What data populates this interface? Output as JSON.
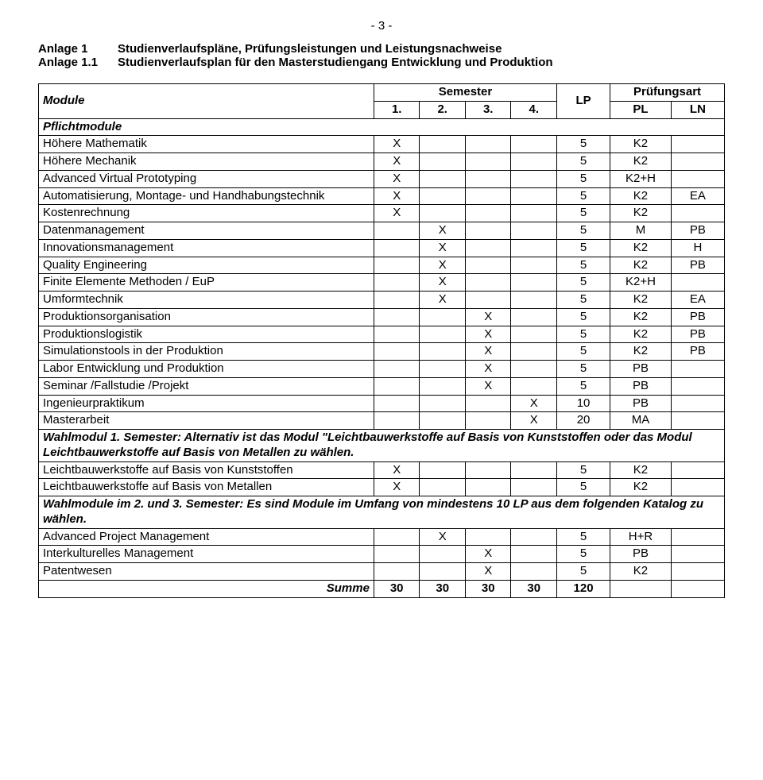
{
  "page_number": "- 3 -",
  "heading": {
    "rows": [
      {
        "key": "Anlage 1",
        "text": "Studienverlaufspläne, Prüfungsleistungen und Leistungsnachweise"
      },
      {
        "key": "Anlage 1.1",
        "text": "Studienverlaufsplan für den Masterstudiengang Entwicklung und Produktion"
      }
    ]
  },
  "table": {
    "header": {
      "module": "Module",
      "semester": "Semester",
      "lp": "LP",
      "pruefungsart": "Prüfungsart",
      "s1": "1.",
      "s2": "2.",
      "s3": "3.",
      "s4": "4.",
      "pl": "PL",
      "ln": "LN"
    },
    "section_pflicht": "Pflichtmodule",
    "rows_pflicht": [
      {
        "name": "Höhere Mathematik",
        "s1": "X",
        "s2": "",
        "s3": "",
        "s4": "",
        "lp": "5",
        "pl": "K2",
        "ln": ""
      },
      {
        "name": "Höhere Mechanik",
        "s1": "X",
        "s2": "",
        "s3": "",
        "s4": "",
        "lp": "5",
        "pl": "K2",
        "ln": ""
      },
      {
        "name": "Advanced Virtual Prototyping",
        "s1": "X",
        "s2": "",
        "s3": "",
        "s4": "",
        "lp": "5",
        "pl": "K2+H",
        "ln": ""
      },
      {
        "name": "Automatisierung, Montage- und Handhabungstechnik",
        "s1": "X",
        "s2": "",
        "s3": "",
        "s4": "",
        "lp": "5",
        "pl": "K2",
        "ln": "EA"
      },
      {
        "name": "Kostenrechnung",
        "s1": "X",
        "s2": "",
        "s3": "",
        "s4": "",
        "lp": "5",
        "pl": "K2",
        "ln": ""
      },
      {
        "name": "Datenmanagement",
        "s1": "",
        "s2": "X",
        "s3": "",
        "s4": "",
        "lp": "5",
        "pl": "M",
        "ln": "PB"
      },
      {
        "name": "Innovationsmanagement",
        "s1": "",
        "s2": "X",
        "s3": "",
        "s4": "",
        "lp": "5",
        "pl": "K2",
        "ln": "H"
      },
      {
        "name": "Quality Engineering",
        "s1": "",
        "s2": "X",
        "s3": "",
        "s4": "",
        "lp": "5",
        "pl": "K2",
        "ln": "PB"
      },
      {
        "name": "Finite Elemente Methoden / EuP",
        "s1": "",
        "s2": "X",
        "s3": "",
        "s4": "",
        "lp": "5",
        "pl": "K2+H",
        "ln": ""
      },
      {
        "name": "Umformtechnik",
        "s1": "",
        "s2": "X",
        "s3": "",
        "s4": "",
        "lp": "5",
        "pl": "K2",
        "ln": "EA"
      },
      {
        "name": "Produktionsorganisation",
        "s1": "",
        "s2": "",
        "s3": "X",
        "s4": "",
        "lp": "5",
        "pl": "K2",
        "ln": "PB"
      },
      {
        "name": "Produktionslogistik",
        "s1": "",
        "s2": "",
        "s3": "X",
        "s4": "",
        "lp": "5",
        "pl": "K2",
        "ln": "PB"
      },
      {
        "name": "Simulationstools in der Produktion",
        "s1": "",
        "s2": "",
        "s3": "X",
        "s4": "",
        "lp": "5",
        "pl": "K2",
        "ln": "PB"
      },
      {
        "name": "Labor Entwicklung und Produktion",
        "s1": "",
        "s2": "",
        "s3": "X",
        "s4": "",
        "lp": "5",
        "pl": "PB",
        "ln": ""
      },
      {
        "name": "Seminar /Fallstudie /Projekt",
        "s1": "",
        "s2": "",
        "s3": "X",
        "s4": "",
        "lp": "5",
        "pl": "PB",
        "ln": ""
      },
      {
        "name": "Ingenieurpraktikum",
        "s1": "",
        "s2": "",
        "s3": "",
        "s4": "X",
        "lp": "10",
        "pl": "PB",
        "ln": ""
      },
      {
        "name": "Masterarbeit",
        "s1": "",
        "s2": "",
        "s3": "",
        "s4": "X",
        "lp": "20",
        "pl": "MA",
        "ln": ""
      }
    ],
    "wahl1_label": "Wahlmodul 1. Semester: Alternativ ist das Modul \"Leichtbauwerkstoffe auf Basis von Kunststoffen oder das Modul Leichtbauwerkstoffe auf Basis von Metallen zu wählen.",
    "rows_wahl1": [
      {
        "name": "Leichtbauwerkstoffe auf Basis von Kunststoffen",
        "s1": "X",
        "s2": "",
        "s3": "",
        "s4": "",
        "lp": "5",
        "pl": "K2",
        "ln": ""
      },
      {
        "name": "Leichtbauwerkstoffe auf Basis von Metallen",
        "s1": "X",
        "s2": "",
        "s3": "",
        "s4": "",
        "lp": "5",
        "pl": "K2",
        "ln": ""
      }
    ],
    "wahl2_label": "Wahlmodule im 2. und 3. Semester: Es sind Module im Umfang von mindestens 10 LP aus dem folgenden Katalog zu wählen.",
    "rows_wahl2": [
      {
        "name": "Advanced Project Management",
        "s1": "",
        "s2": "X",
        "s3": "",
        "s4": "",
        "lp": "5",
        "pl": "H+R",
        "ln": ""
      },
      {
        "name": "Interkulturelles Management",
        "s1": "",
        "s2": "",
        "s3": "X",
        "s4": "",
        "lp": "5",
        "pl": "PB",
        "ln": ""
      },
      {
        "name": "Patentwesen",
        "s1": "",
        "s2": "",
        "s3": "X",
        "s4": "",
        "lp": "5",
        "pl": "K2",
        "ln": ""
      }
    ],
    "sum": {
      "label": "Summe",
      "s1": "30",
      "s2": "30",
      "s3": "30",
      "s4": "30",
      "lp": "120",
      "pl": "",
      "ln": ""
    }
  }
}
